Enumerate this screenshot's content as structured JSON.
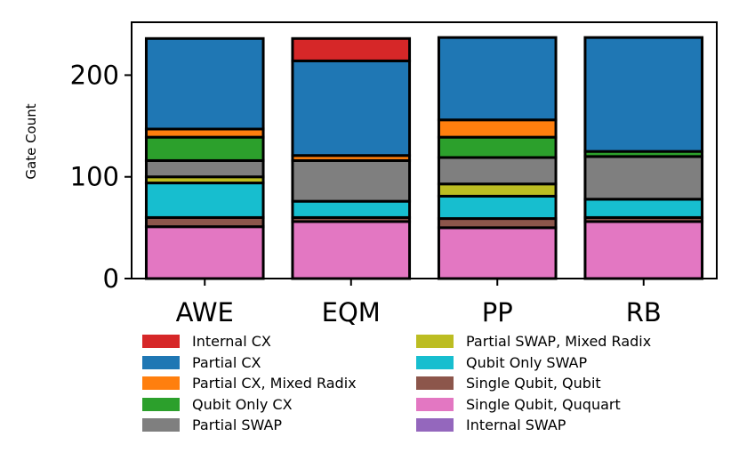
{
  "chart_data": {
    "type": "bar",
    "stacked": true,
    "ylabel": "Gate Count",
    "xlabel": "",
    "title": "",
    "ylim": [
      0,
      252
    ],
    "yticks": [
      0,
      100,
      200
    ],
    "categories": [
      "AWE",
      "EQM",
      "PP",
      "RB"
    ],
    "series": [
      {
        "name": "Single Qubit, Ququart",
        "color": "#e377c2",
        "values": [
          51,
          56,
          50,
          56
        ]
      },
      {
        "name": "Single Qubit, Qubit",
        "color": "#8c564b",
        "values": [
          9,
          4,
          9,
          4
        ]
      },
      {
        "name": "Qubit Only SWAP",
        "color": "#17becf",
        "values": [
          34,
          16,
          22,
          18
        ]
      },
      {
        "name": "Partial SWAP, Mixed Radix",
        "color": "#bcbd22",
        "values": [
          6,
          0,
          12,
          0
        ]
      },
      {
        "name": "Partial SWAP",
        "color": "#7f7f7f",
        "values": [
          16,
          40,
          26,
          42
        ]
      },
      {
        "name": "Qubit Only CX",
        "color": "#2ca02c",
        "values": [
          23,
          0,
          20,
          5
        ]
      },
      {
        "name": "Partial CX, Mixed Radix",
        "color": "#ff7f0e",
        "values": [
          8,
          5,
          17,
          0
        ]
      },
      {
        "name": "Partial CX",
        "color": "#1f77b4",
        "values": [
          89,
          93,
          81,
          112
        ]
      },
      {
        "name": "Internal CX",
        "color": "#d62728",
        "values": [
          0,
          22,
          0,
          0
        ]
      },
      {
        "name": "Internal SWAP",
        "color": "#9467bd",
        "values": [
          0,
          0,
          0,
          0
        ]
      }
    ],
    "legend": {
      "placement": "below",
      "columns": 2,
      "order": [
        "Internal CX",
        "Partial CX",
        "Partial CX, Mixed Radix",
        "Qubit Only CX",
        "Partial SWAP",
        "Partial SWAP, Mixed Radix",
        "Qubit Only SWAP",
        "Single Qubit, Qubit",
        "Single Qubit, Ququart",
        "Internal SWAP"
      ]
    },
    "grid": false
  }
}
